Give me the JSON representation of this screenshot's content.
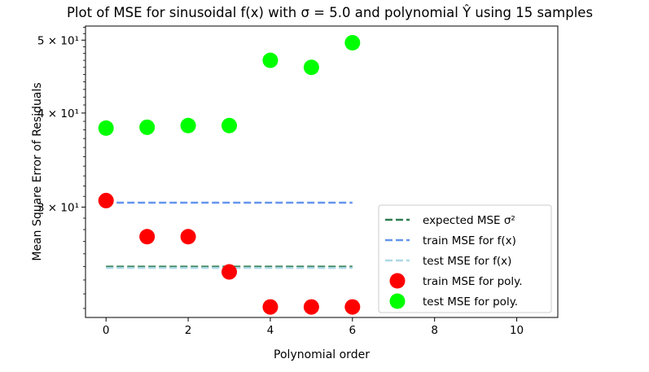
{
  "chart_data": {
    "type": "scatter",
    "title": "Plot of MSE for sinusoidal f(x) with σ = 5.0 and polynomial Ŷ using 15 samples",
    "xlabel": "Polynomial order",
    "ylabel": "Mean Square Error of Residuals",
    "xlim": [
      -0.5,
      11
    ],
    "ylim": [
      21.4,
      52.2
    ],
    "yscale": "log",
    "x_ticks": [
      0,
      2,
      4,
      6,
      8,
      10
    ],
    "y_ticks": [
      {
        "value": 30,
        "label": "3 × 10¹"
      },
      {
        "value": 40,
        "label": "4 × 10¹"
      },
      {
        "value": 50,
        "label": "5 × 10¹"
      }
    ],
    "grid": false,
    "legend_position": "lower-right",
    "series": [
      {
        "name": "expected MSE σ²",
        "kind": "dashed-line",
        "color": "#2e7d4f",
        "x": [
          0,
          6
        ],
        "y": [
          25.0,
          25.0
        ]
      },
      {
        "name": "train MSE for f(x)",
        "kind": "dashed-line",
        "color": "#6495ed",
        "x": [
          0,
          6
        ],
        "y": [
          30.4,
          30.4
        ]
      },
      {
        "name": "test MSE for f(x)",
        "kind": "dashed-line",
        "color": "#add8e6",
        "x": [
          0,
          6
        ],
        "y": [
          24.9,
          24.9
        ]
      },
      {
        "name": "train MSE for poly.",
        "kind": "scatter",
        "color": "#ff0000",
        "x": [
          0,
          1,
          2,
          3,
          4,
          5,
          6
        ],
        "y": [
          30.6,
          27.4,
          27.4,
          24.6,
          22.1,
          22.1,
          22.1
        ]
      },
      {
        "name": "test MSE for poly.",
        "kind": "scatter",
        "color": "#00ff00",
        "x": [
          0,
          1,
          2,
          3,
          4,
          5,
          6
        ],
        "y": [
          38.2,
          38.3,
          38.5,
          38.5,
          47.0,
          46.0,
          49.6
        ]
      }
    ]
  }
}
